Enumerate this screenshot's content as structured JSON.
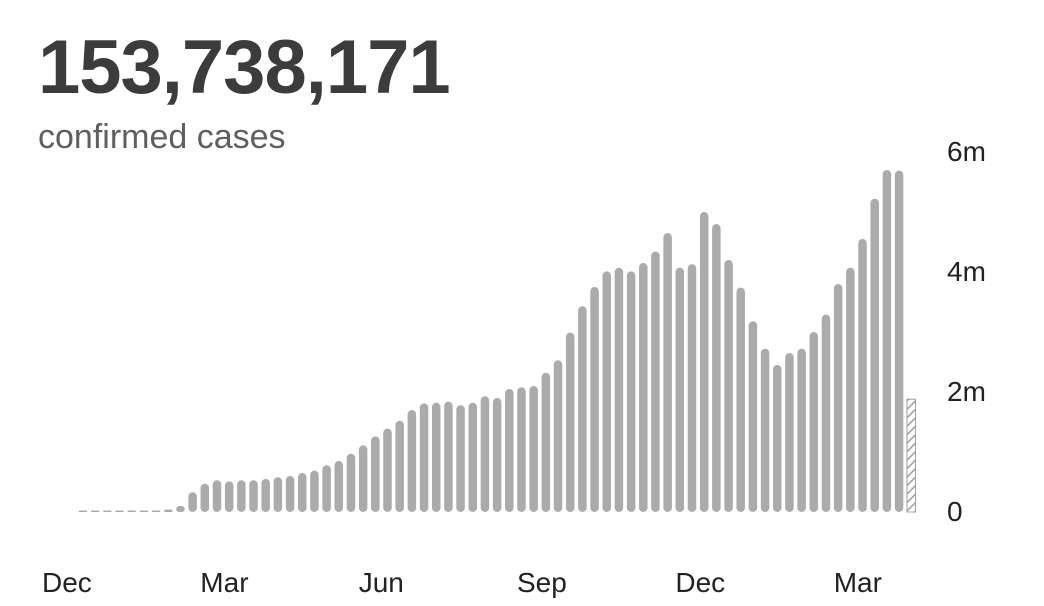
{
  "summary": {
    "total": "153,738,171",
    "label": "confirmed cases"
  },
  "colors": {
    "bar": "#ababab",
    "partial_bar_stroke": "#a0a0a0",
    "text": "#222222"
  },
  "chart_data": {
    "type": "bar",
    "title": "",
    "xlabel": "",
    "ylabel": "",
    "ylim": [
      0,
      6000000
    ],
    "y_ticks": [
      {
        "value": 0,
        "label": "0"
      },
      {
        "value": 2000000,
        "label": "2m"
      },
      {
        "value": 4000000,
        "label": "4m"
      },
      {
        "value": 6000000,
        "label": "6m"
      }
    ],
    "x_tick_labels": [
      {
        "index": 0,
        "label": "Dec"
      },
      {
        "index": 13,
        "label": "Mar"
      },
      {
        "index": 26,
        "label": "Jun"
      },
      {
        "index": 39,
        "label": "Sep"
      },
      {
        "index": 52,
        "label": "Dec"
      },
      {
        "index": 65,
        "label": "Mar"
      }
    ],
    "series": [
      {
        "values": [
          2000,
          5000,
          9000,
          8000,
          7000,
          10000,
          15000,
          40000,
          100000,
          330000,
          470000,
          530000,
          510000,
          530000,
          530000,
          550000,
          580000,
          600000,
          650000,
          690000,
          780000,
          850000,
          970000,
          1110000,
          1260000,
          1390000,
          1520000,
          1700000,
          1810000,
          1820000,
          1840000,
          1780000,
          1820000,
          1930000,
          1900000,
          2050000,
          2080000,
          2100000,
          2320000,
          2530000,
          2990000,
          3430000,
          3750000,
          4010000,
          4070000,
          4010000,
          4150000,
          4340000,
          4650000,
          4070000,
          4130000,
          5000000,
          4800000,
          4200000,
          3740000,
          3180000,
          2720000,
          2450000,
          2650000,
          2720000,
          3000000,
          3290000,
          3800000,
          4070000,
          4550000,
          5220000,
          5700000,
          5690000
        ],
        "partial_last_value": 1880000
      }
    ]
  }
}
